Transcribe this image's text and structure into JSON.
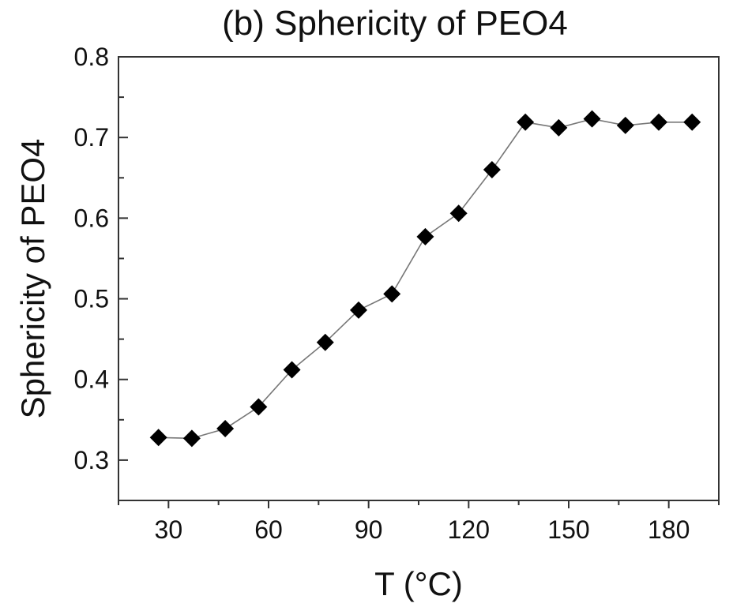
{
  "chart_data": {
    "type": "scatter",
    "title": "(b) Sphericity of PEO4",
    "xlabel": "T (°C)",
    "ylabel": "Sphericity of PEO4",
    "xlim": [
      15,
      195
    ],
    "ylim": [
      0.25,
      0.8
    ],
    "x_ticks": [
      30,
      60,
      90,
      120,
      150,
      180
    ],
    "y_ticks": [
      0.3,
      0.4,
      0.5,
      0.6,
      0.7,
      0.8
    ],
    "x_tick_labels": [
      "30",
      "60",
      "90",
      "120",
      "150",
      "180"
    ],
    "y_tick_labels": [
      "0.3",
      "0.4",
      "0.5",
      "0.6",
      "0.7",
      "0.8"
    ],
    "grid": false,
    "legend": "none",
    "marker": "diamond",
    "connected": true,
    "series": [
      {
        "x": [
          27,
          37,
          47,
          57,
          67,
          77,
          87,
          97,
          107,
          117,
          127,
          137,
          147,
          157,
          167,
          177,
          187
        ],
        "y": [
          0.328,
          0.327,
          0.339,
          0.366,
          0.412,
          0.446,
          0.486,
          0.506,
          0.577,
          0.606,
          0.66,
          0.719,
          0.712,
          0.723,
          0.715,
          0.719,
          0.719
        ]
      }
    ],
    "colors": {
      "marker": "#000000",
      "line": "#777777",
      "axes": "#333333"
    }
  }
}
